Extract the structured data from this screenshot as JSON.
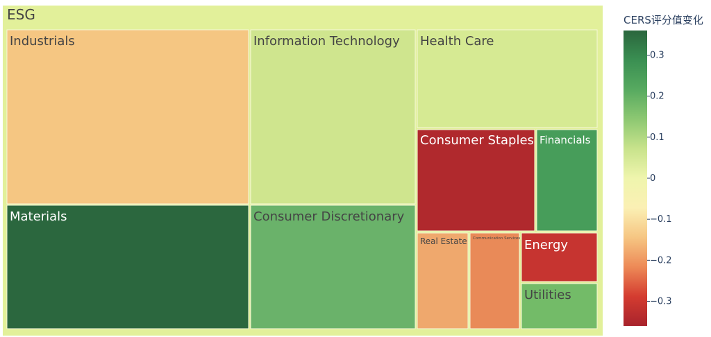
{
  "chart_data": {
    "type": "treemap",
    "root": {
      "label": "ESG",
      "value": 0.08,
      "color": "#e2f09a"
    },
    "tiles": [
      {
        "label": "Industrials",
        "value": -0.1,
        "color": "#f5c682",
        "text_color": "#444444"
      },
      {
        "label": "Materials",
        "value": 0.35,
        "color": "#2b673e",
        "text_color": "#ffffff"
      },
      {
        "label": "Information Technology",
        "value": 0.1,
        "color": "#cfe58e",
        "text_color": "#444444"
      },
      {
        "label": "Consumer Discretionary",
        "value": 0.22,
        "color": "#6ab26a",
        "text_color": "#444444"
      },
      {
        "label": "Health Care",
        "value": 0.09,
        "color": "#d6ea93",
        "text_color": "#444444"
      },
      {
        "label": "Consumer Staples",
        "value": -0.35,
        "color": "#b0292d",
        "text_color": "#ffffff"
      },
      {
        "label": "Financials",
        "value": 0.27,
        "color": "#479d5a",
        "text_color": "#ffffff"
      },
      {
        "label": "Real Estate",
        "value": -0.13,
        "color": "#efa86d",
        "text_color": "#444444"
      },
      {
        "label": "Communication Services",
        "value": -0.17,
        "color": "#e98a58",
        "text_color": "#444444"
      },
      {
        "label": "Energy",
        "value": -0.3,
        "color": "#c63430",
        "text_color": "#ffffff"
      },
      {
        "label": "Utilities",
        "value": 0.2,
        "color": "#73bb68",
        "text_color": "#444444"
      }
    ],
    "colorbar": {
      "title": "CERS评分值变化",
      "range": [
        -0.36,
        0.36
      ],
      "ticks": [
        0.3,
        0.2,
        0.1,
        0,
        -0.1,
        -0.2,
        -0.3
      ],
      "tick_labels": [
        "0.3",
        "0.2",
        "0.1",
        "0",
        "−0.1",
        "−0.2",
        "−0.3"
      ],
      "colorscale": [
        "#a50026",
        "#d73027",
        "#f46d43",
        "#fdae61",
        "#fee08b",
        "#ffffbf",
        "#d9ef8b",
        "#a6d96a",
        "#66bd63",
        "#1a9850",
        "#006837"
      ],
      "display_colors": [
        "#a8232c",
        "#d43c30",
        "#ed8a57",
        "#f6c683",
        "#fbf0b4",
        "#eff5ad",
        "#c8e38c",
        "#8dc872",
        "#57aa60",
        "#3a8f52",
        "#2a663d"
      ]
    }
  }
}
